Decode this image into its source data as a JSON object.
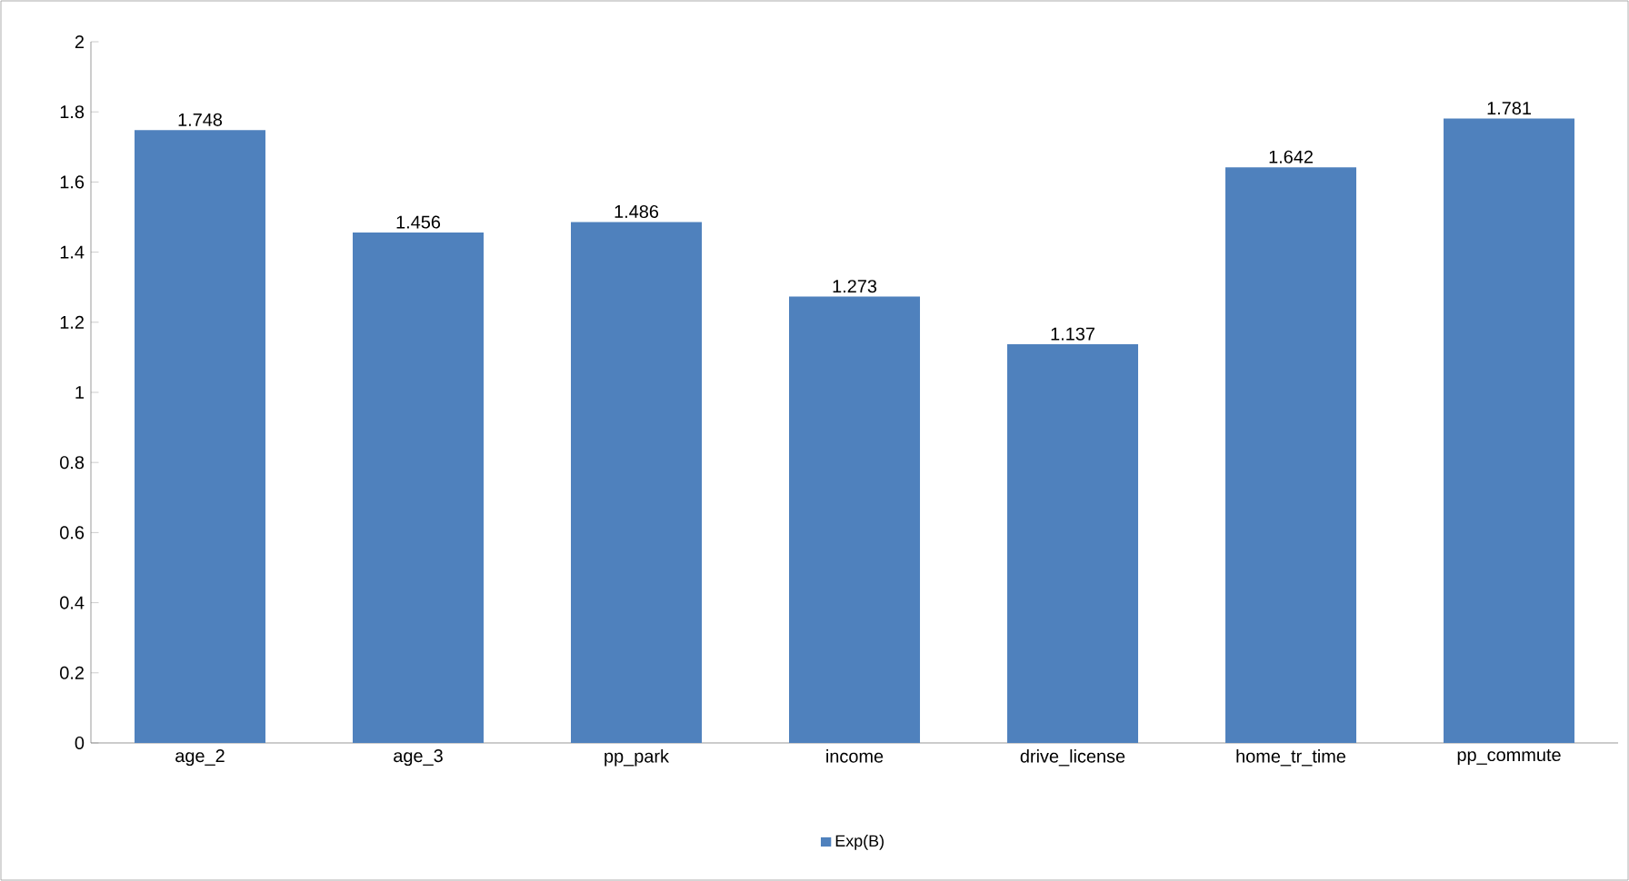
{
  "chart_data": {
    "type": "bar",
    "categories": [
      "age_2",
      "age_3",
      "pp_park",
      "income",
      "drive_license",
      "home_tr_time",
      "pp_commute"
    ],
    "series": [
      {
        "name": "Exp(B)",
        "color": "#4f81bd",
        "values": [
          1.748,
          1.456,
          1.486,
          1.273,
          1.137,
          1.642,
          1.781
        ]
      }
    ],
    "ylim": [
      0,
      2
    ],
    "yticks": [
      0,
      0.2,
      0.4,
      0.6,
      0.8,
      1,
      1.2,
      1.4,
      1.6,
      1.8,
      2
    ],
    "data_labels": true,
    "grid": false,
    "legend": "bottom"
  }
}
